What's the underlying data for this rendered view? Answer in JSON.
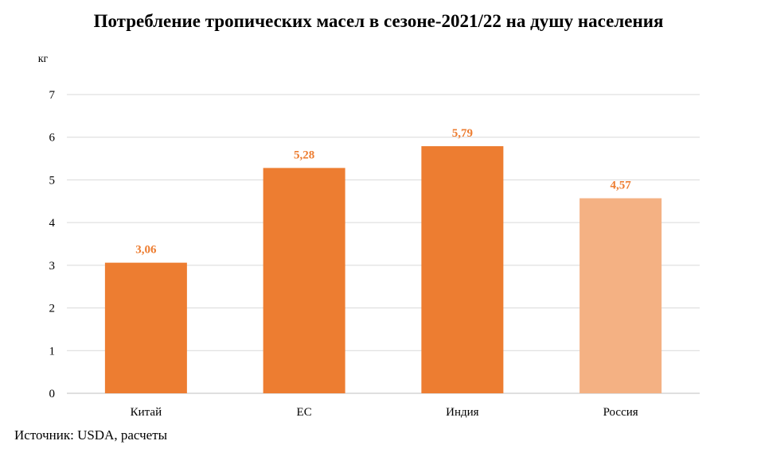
{
  "chart_data": {
    "type": "bar",
    "title": "Потребление тропических масел в сезоне-2021/22 на душу населения",
    "unit_label": "кг",
    "categories": [
      "Китай",
      "ЕС",
      "Индия",
      "Россия"
    ],
    "values": [
      3.06,
      5.28,
      5.79,
      4.57
    ],
    "value_labels": [
      "3,06",
      "5,28",
      "5,79",
      "4,57"
    ],
    "bar_colors": [
      "#ED7D31",
      "#ED7D31",
      "#ED7D31",
      "#F4B183"
    ],
    "label_color": "#ED7D31",
    "ylim": [
      0,
      7
    ],
    "yticks": [
      0,
      1,
      2,
      3,
      4,
      5,
      6,
      7
    ],
    "grid": true,
    "legend": "none"
  },
  "source": "Источник: USDA, расчеты"
}
